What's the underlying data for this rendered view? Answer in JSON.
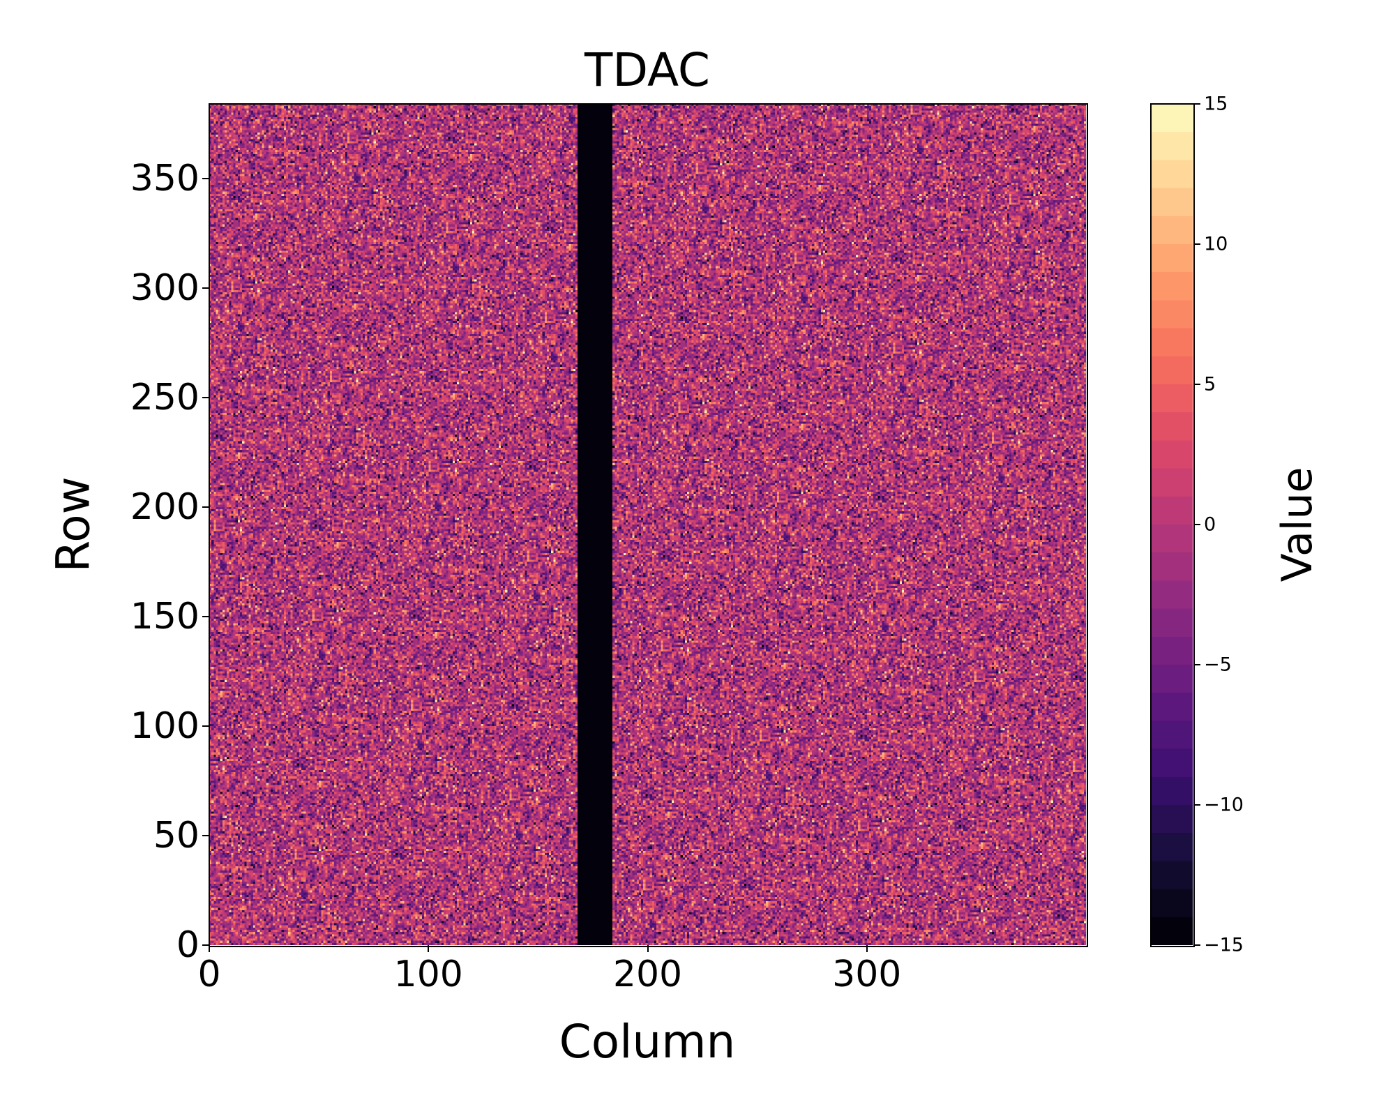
{
  "chart_data": {
    "type": "heatmap",
    "title": "TDAC",
    "xlabel": "Column",
    "ylabel": "Row",
    "colorbar_label": "Value",
    "colormap": "magma",
    "colormap_levels": 30,
    "shape": {
      "columns": 400,
      "rows": 384
    },
    "xlim": [
      0,
      400
    ],
    "ylim": [
      0,
      384
    ],
    "x_ticks": [
      0,
      100,
      200,
      300
    ],
    "y_ticks": [
      0,
      50,
      100,
      150,
      200,
      250,
      300,
      350
    ],
    "x_tick_labels": [
      "0",
      "100",
      "200",
      "300"
    ],
    "y_tick_labels": [
      "0",
      "50",
      "100",
      "150",
      "200",
      "250",
      "300",
      "350"
    ],
    "colorbar_range": [
      -15,
      15
    ],
    "colorbar_ticks": [
      -15,
      -10,
      -5,
      0,
      5,
      10,
      15
    ],
    "colorbar_tick_labels": [
      "−15",
      "−10",
      "−5",
      "0",
      "5",
      "10",
      "15"
    ],
    "masked_columns": [
      168,
      184
    ],
    "masked_value": -15,
    "value_distribution": {
      "mean": -1,
      "std": 4.5,
      "min": -15,
      "max": 15,
      "note": "per-pixel random noise"
    }
  }
}
